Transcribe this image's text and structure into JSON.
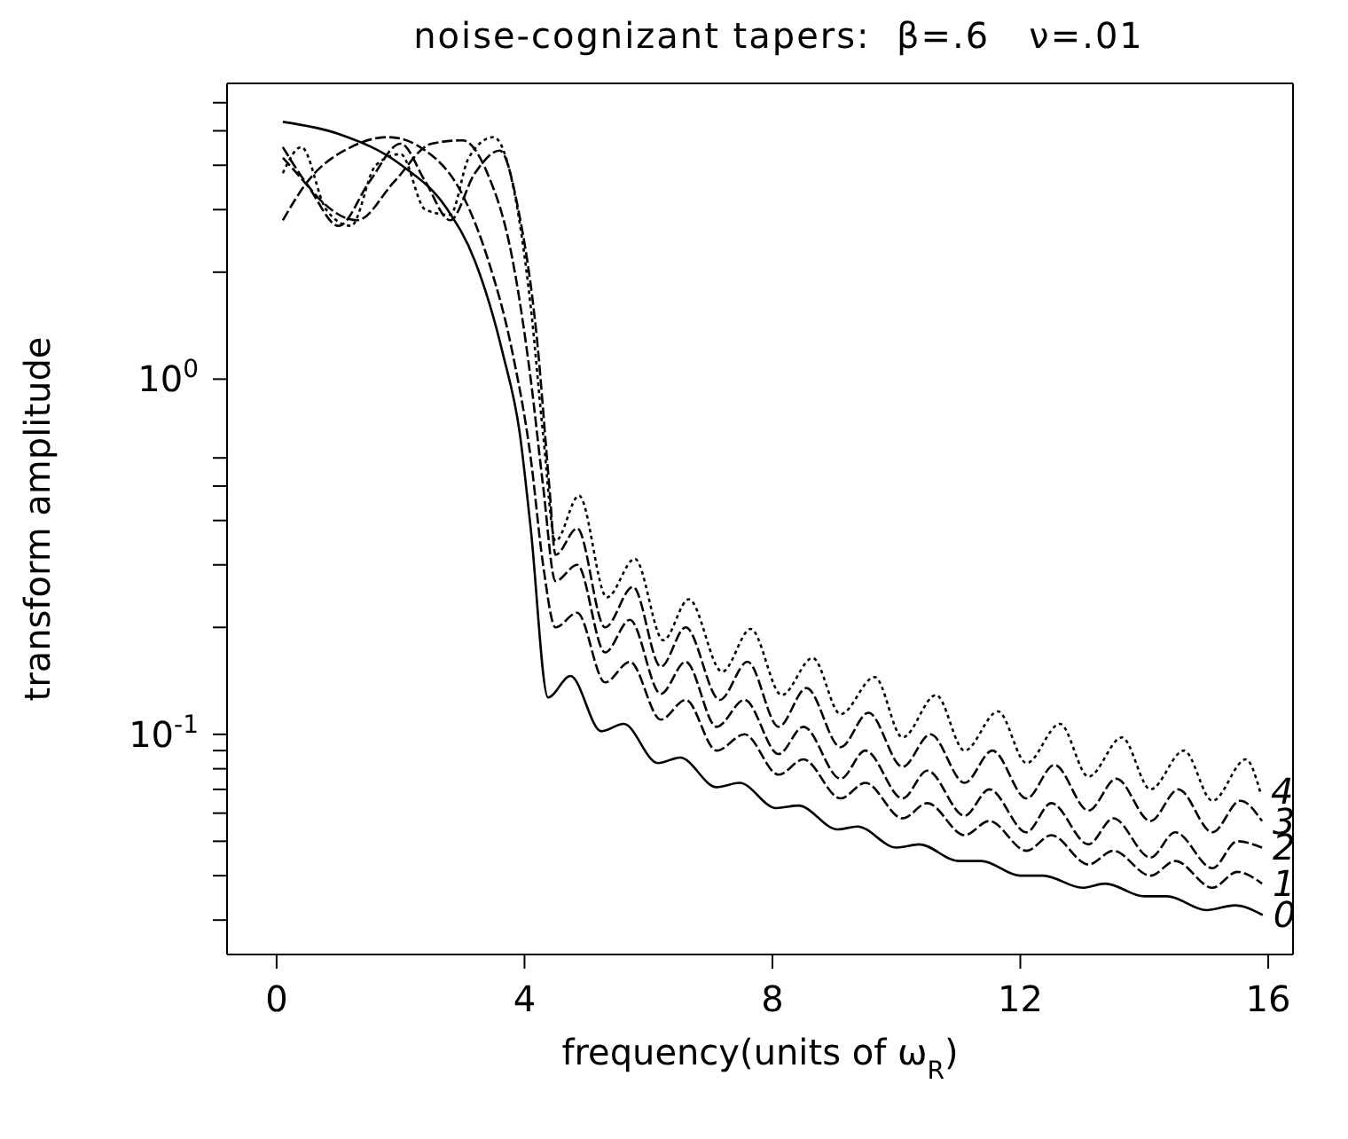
{
  "chart_data": {
    "type": "line",
    "title": "noise-cognizant tapers:  β=.6   ν=.01",
    "xlabel": "frequency(units of ω$_{R}$)",
    "ylabel": "transform amplitude",
    "log": "y",
    "marker": "none",
    "xlim": [
      -0.8,
      16.4
    ],
    "xticks": [
      0,
      4,
      8,
      12,
      16
    ],
    "ylim": [
      0.024,
      6.8
    ],
    "yticks": [
      {
        "value": 0.03,
        "label": null
      },
      {
        "value": 0.04,
        "label": null
      },
      {
        "value": 0.05,
        "label": null
      },
      {
        "value": 0.06,
        "label": null
      },
      {
        "value": 0.07,
        "label": null
      },
      {
        "value": 0.08,
        "label": null
      },
      {
        "value": 0.09,
        "label": null
      },
      {
        "value": 0.1,
        "label": "10$^{-1}$"
      },
      {
        "value": 0.2,
        "label": null
      },
      {
        "value": 0.3,
        "label": null
      },
      {
        "value": 0.4,
        "label": null
      },
      {
        "value": 0.5,
        "label": null
      },
      {
        "value": 0.6,
        "label": null
      },
      {
        "value": 1,
        "label": "10$^{0}$"
      },
      {
        "value": 2,
        "label": null
      },
      {
        "value": 3,
        "label": null
      },
      {
        "value": 4,
        "label": null
      },
      {
        "value": 5,
        "label": null
      },
      {
        "value": 6,
        "label": null
      }
    ],
    "series": [
      {
        "name": "0",
        "color": "#000000",
        "line_style": "solid",
        "x": [
          0.1,
          1,
          2.04,
          2.74,
          3.2,
          3.65,
          3.92,
          4.1,
          4.38,
          4.74,
          5.24,
          5.6,
          6.15,
          6.51,
          7.1,
          7.47,
          8.06,
          8.42,
          9.05,
          9.37,
          10,
          10.37,
          11,
          11.37,
          12,
          12.37,
          13,
          13.37,
          14,
          14.37,
          15,
          15.46,
          15.91
        ],
        "values": [
          5.3,
          4.9,
          3.97,
          3.03,
          2.15,
          1.18,
          0.71,
          0.38,
          0.127,
          0.146,
          0.102,
          0.107,
          0.083,
          0.086,
          0.071,
          0.073,
          0.062,
          0.063,
          0.054,
          0.055,
          0.048,
          0.049,
          0.044,
          0.044,
          0.04,
          0.04,
          0.037,
          0.038,
          0.035,
          0.035,
          0.032,
          0.033,
          0.031
        ]
      },
      {
        "name": "1",
        "color": "#000000",
        "line_style": "dashed",
        "x": [
          0.1,
          0.5,
          1.2,
          1.8,
          2.4,
          3,
          3.4,
          3.8,
          4.1,
          4.3,
          4.5,
          4.85,
          5.3,
          5.7,
          6.2,
          6.6,
          7.1,
          7.55,
          8.1,
          8.5,
          9.1,
          9.5,
          10.1,
          10.5,
          11.1,
          11.5,
          12.1,
          12.5,
          13.1,
          13.5,
          14.1,
          14.5,
          15.1,
          15.5,
          15.9
        ],
        "values": [
          2.8,
          3.6,
          4.5,
          4.8,
          4.4,
          3.3,
          2.2,
          1.2,
          0.6,
          0.3,
          0.2,
          0.22,
          0.14,
          0.16,
          0.11,
          0.125,
          0.09,
          0.1,
          0.077,
          0.085,
          0.066,
          0.073,
          0.058,
          0.064,
          0.052,
          0.057,
          0.047,
          0.052,
          0.043,
          0.047,
          0.04,
          0.044,
          0.037,
          0.041,
          0.038
        ]
      },
      {
        "name": "2",
        "color": "#000000",
        "line_style": "dashed",
        "x": [
          0.1,
          0.7,
          1.3,
          1.9,
          2.5,
          3,
          3.4,
          3.8,
          4.1,
          4.3,
          4.5,
          4.85,
          5.3,
          5.7,
          6.2,
          6.6,
          7.1,
          7.55,
          8.1,
          8.5,
          9.1,
          9.5,
          10.1,
          10.5,
          11.1,
          11.5,
          12.1,
          12.5,
          13.1,
          13.5,
          14.1,
          14.5,
          15.1,
          15.5,
          15.9
        ],
        "values": [
          4.5,
          3.2,
          2.8,
          3.6,
          4.6,
          4.7,
          3.8,
          2.2,
          1,
          0.5,
          0.27,
          0.3,
          0.17,
          0.21,
          0.13,
          0.16,
          0.105,
          0.125,
          0.088,
          0.105,
          0.075,
          0.09,
          0.066,
          0.079,
          0.059,
          0.07,
          0.053,
          0.064,
          0.049,
          0.058,
          0.045,
          0.053,
          0.042,
          0.05,
          0.048
        ]
      },
      {
        "name": "3",
        "color": "#000000",
        "line_style": "dashed",
        "x": [
          0.1,
          0.5,
          1,
          1.5,
          2,
          2.4,
          2.8,
          3.2,
          3.6,
          3.9,
          4.2,
          4.4,
          4.5,
          4.85,
          5.3,
          5.75,
          6.2,
          6.6,
          7.15,
          7.6,
          8.1,
          8.55,
          9.1,
          9.55,
          10.1,
          10.55,
          11.1,
          11.55,
          12.1,
          12.55,
          13.1,
          13.55,
          14.1,
          14.55,
          15.1,
          15.55,
          15.9
        ],
        "values": [
          4.2,
          3.5,
          2.7,
          3.6,
          4.6,
          3.6,
          2.8,
          3.8,
          4.4,
          3,
          1.3,
          0.5,
          0.32,
          0.38,
          0.2,
          0.26,
          0.155,
          0.2,
          0.125,
          0.16,
          0.105,
          0.135,
          0.092,
          0.115,
          0.081,
          0.1,
          0.073,
          0.09,
          0.066,
          0.082,
          0.061,
          0.075,
          0.057,
          0.07,
          0.053,
          0.065,
          0.057
        ]
      },
      {
        "name": "4",
        "color": "#000000",
        "line_style": "dotted",
        "x": [
          0.1,
          0.4,
          0.8,
          1.2,
          1.6,
          2,
          2.4,
          2.8,
          3.1,
          3.5,
          3.8,
          4.1,
          4.3,
          4.5,
          4.88,
          5.33,
          5.78,
          6.24,
          6.65,
          7.19,
          7.65,
          8.15,
          8.65,
          9.1,
          9.65,
          10.1,
          10.64,
          11.1,
          11.64,
          12.1,
          12.64,
          13.1,
          13.64,
          14.1,
          14.64,
          15.1,
          15.64,
          15.87
        ],
        "values": [
          3.8,
          4.5,
          3,
          2.7,
          4,
          4.3,
          3,
          2.9,
          4.2,
          4.8,
          3.6,
          1.6,
          0.7,
          0.35,
          0.47,
          0.243,
          0.312,
          0.184,
          0.24,
          0.15,
          0.198,
          0.129,
          0.164,
          0.114,
          0.145,
          0.098,
          0.129,
          0.09,
          0.116,
          0.083,
          0.107,
          0.076,
          0.098,
          0.07,
          0.09,
          0.065,
          0.085,
          0.069
        ]
      }
    ]
  }
}
